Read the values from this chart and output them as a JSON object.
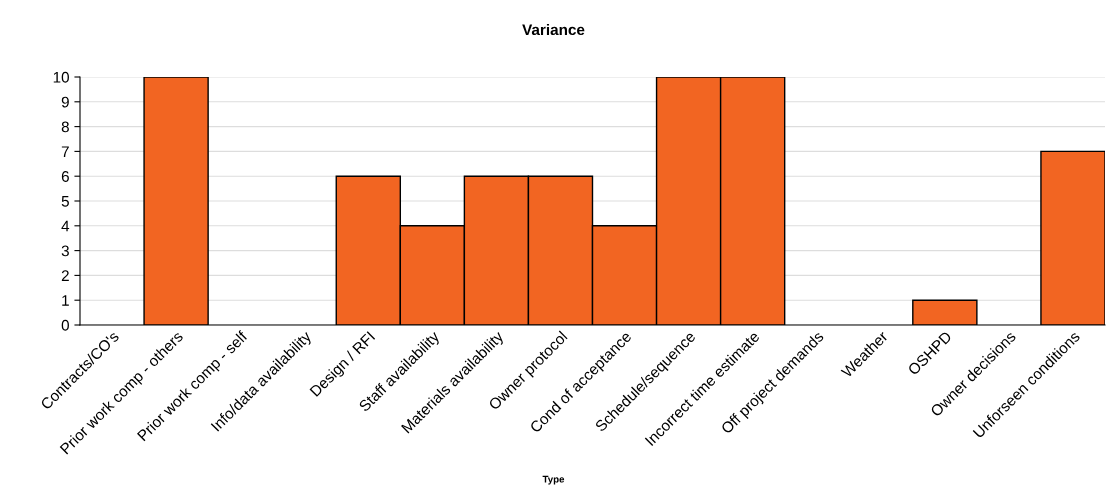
{
  "chart_data": {
    "type": "bar",
    "title": "Variance",
    "xlabel": "Type",
    "categories": [
      "Contracts/CO's",
      "Prior work comp - others",
      "Prior work comp - self",
      "Info/data availability",
      "Design / RFI",
      "Staff availability",
      "Materials availability",
      "Owner protocol",
      "Cond of acceptance",
      "Schedule/sequence",
      "Incorrect time estimate",
      "Off project demands",
      "Weather",
      "OSHPD",
      "Owner decisions",
      "Unforseen conditions"
    ],
    "values": [
      0,
      10,
      0,
      0,
      6,
      4,
      6,
      6,
      4,
      10,
      10,
      0,
      0,
      1,
      0,
      7
    ],
    "color": "#f26522",
    "ylim": [
      0,
      10
    ],
    "yticks": [
      0,
      1,
      2,
      3,
      4,
      5,
      6,
      7,
      8,
      9,
      10
    ],
    "grid": "y",
    "legend": false
  }
}
